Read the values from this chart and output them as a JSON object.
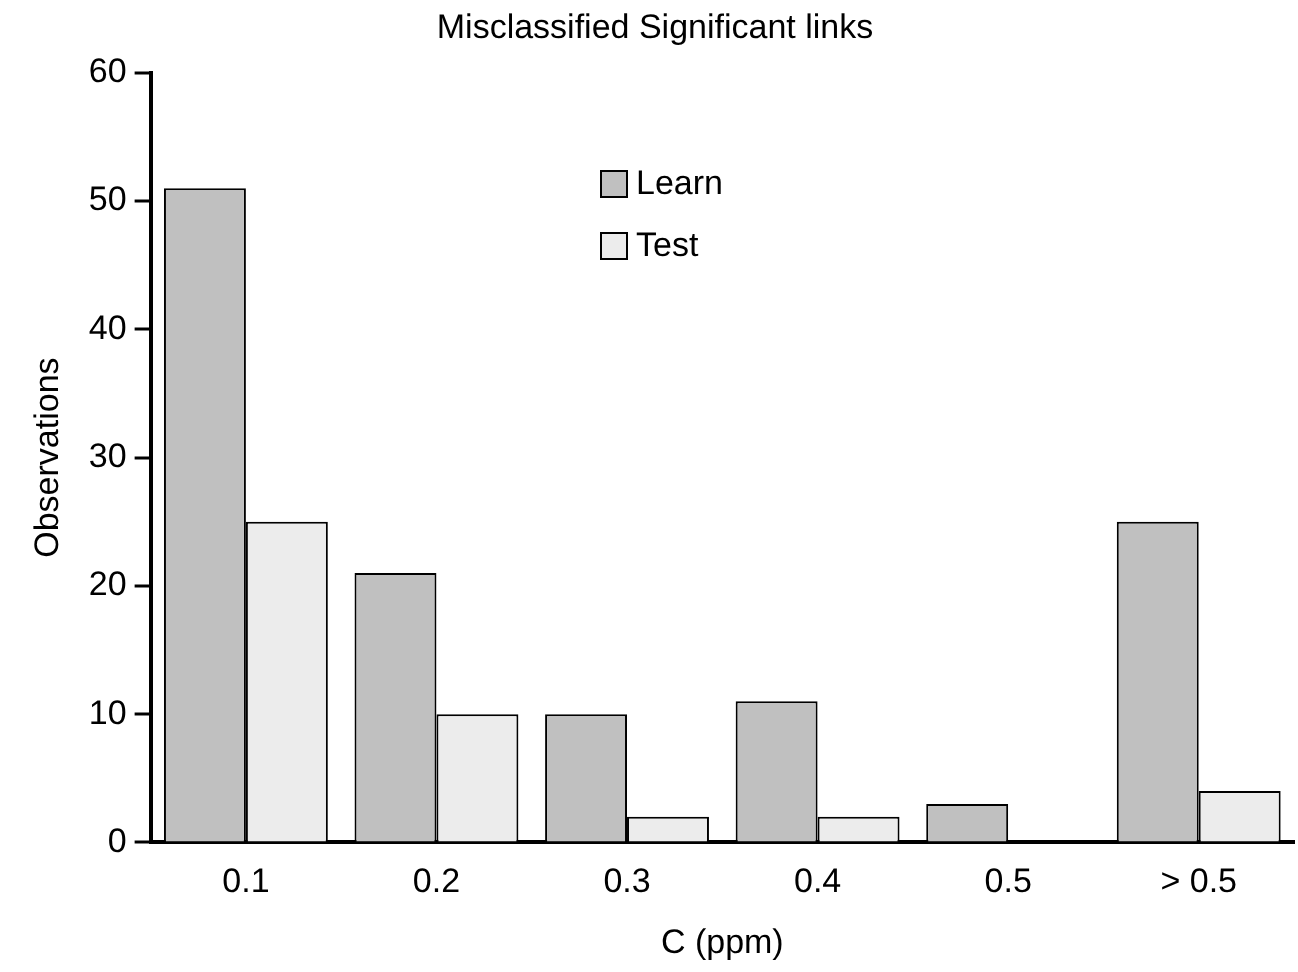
{
  "chart_data": {
    "type": "bar",
    "title": "Misclassified Significant links",
    "xlabel": "C (ppm)",
    "ylabel": "Observations",
    "categories": [
      "0.1",
      "0.2",
      "0.3",
      "0.4",
      "0.5",
      "> 0.5"
    ],
    "series": [
      {
        "name": "Learn",
        "color": "#c0c0c0",
        "values": [
          51,
          21,
          10,
          11,
          3,
          25
        ]
      },
      {
        "name": "Test",
        "color": "#ececec",
        "values": [
          25,
          10,
          2,
          2,
          0,
          4
        ]
      }
    ],
    "ylim": [
      0,
      60
    ],
    "yticks": [
      0,
      10,
      20,
      30,
      40,
      50,
      60
    ],
    "grid": false,
    "legend": "top"
  }
}
